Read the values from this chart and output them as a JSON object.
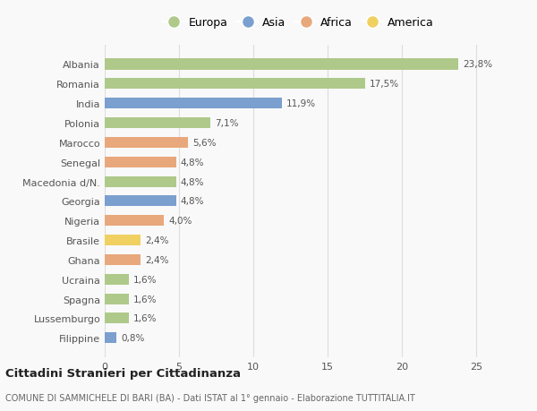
{
  "countries": [
    "Albania",
    "Romania",
    "India",
    "Polonia",
    "Marocco",
    "Senegal",
    "Macedonia d/N.",
    "Georgia",
    "Nigeria",
    "Brasile",
    "Ghana",
    "Ucraina",
    "Spagna",
    "Lussemburgo",
    "Filippine"
  ],
  "values": [
    23.8,
    17.5,
    11.9,
    7.1,
    5.6,
    4.8,
    4.8,
    4.8,
    4.0,
    2.4,
    2.4,
    1.6,
    1.6,
    1.6,
    0.8
  ],
  "labels": [
    "23,8%",
    "17,5%",
    "11,9%",
    "7,1%",
    "5,6%",
    "4,8%",
    "4,8%",
    "4,8%",
    "4,0%",
    "2,4%",
    "2,4%",
    "1,6%",
    "1,6%",
    "1,6%",
    "0,8%"
  ],
  "continents": [
    "Europa",
    "Europa",
    "Asia",
    "Europa",
    "Africa",
    "Africa",
    "Europa",
    "Asia",
    "Africa",
    "America",
    "Africa",
    "Europa",
    "Europa",
    "Europa",
    "Asia"
  ],
  "continent_colors": {
    "Europa": "#aec98a",
    "Asia": "#7b9fcf",
    "Africa": "#e8a87c",
    "America": "#f0d060"
  },
  "legend_order": [
    "Europa",
    "Asia",
    "Africa",
    "America"
  ],
  "legend_colors": [
    "#aec98a",
    "#7b9fcf",
    "#e8a87c",
    "#f0d060"
  ],
  "title": "Cittadini Stranieri per Cittadinanza",
  "subtitle": "COMUNE DI SAMMICHELE DI BARI (BA) - Dati ISTAT al 1° gennaio - Elaborazione TUTTITALIA.IT",
  "xlim": [
    0,
    26
  ],
  "xticks": [
    0,
    5,
    10,
    15,
    20,
    25
  ],
  "background_color": "#f9f9f9",
  "grid_color": "#dddddd"
}
